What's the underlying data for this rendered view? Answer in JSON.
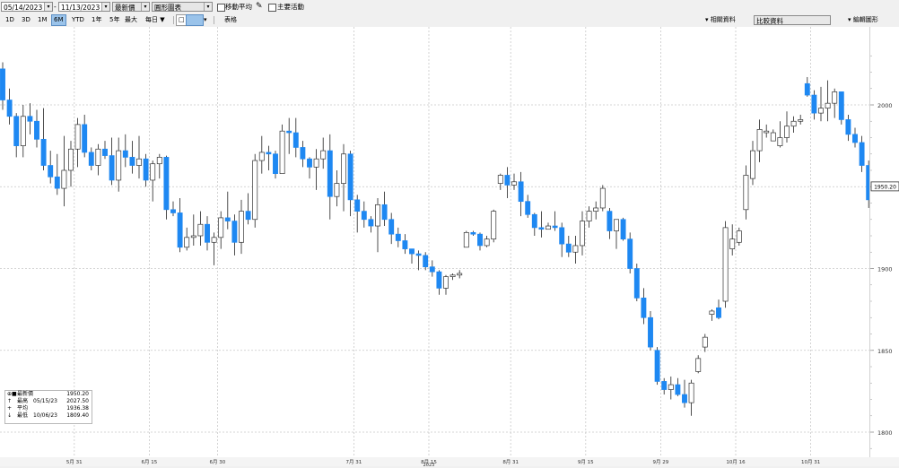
{
  "toolbar": {
    "start_date": "05/14/2023",
    "end_date": "11/13/2023",
    "field_1": "最新價",
    "field_2": "圓形圖表",
    "moving_avg_label": "移動平均",
    "key_events_label": "主要活動"
  },
  "periods": [
    "1D",
    "3D",
    "1M",
    "6M",
    "YTD",
    "1年",
    "5年",
    "最大",
    "每日 ▼"
  ],
  "selected_period": "6M",
  "table_label": "表格",
  "right_controls": {
    "related_data": "相關資料",
    "compare_data": "比較資料",
    "edit_chart": "編輯圖形"
  },
  "legend": {
    "rows": [
      {
        "label": "最新價",
        "date": "",
        "value": "1950.20"
      },
      {
        "label": "最高",
        "date": "05/15/23",
        "value": "2027.50"
      },
      {
        "label": "平均",
        "date": "",
        "value": "1936.38"
      },
      {
        "label": "最低",
        "date": "10/06/23",
        "value": "1809.40"
      }
    ]
  },
  "chart_data": {
    "type": "candlestick",
    "title": "",
    "ylim": [
      1785,
      2035
    ],
    "yticks": [
      1800,
      1850,
      1900,
      1950,
      2000
    ],
    "grid": true,
    "up_color": "#ffffff",
    "down_color": "#1e88f2",
    "last_price_label": "1950.20",
    "last_price": 1950.2,
    "year_label": "2023",
    "x_ticks": [
      "5月 31",
      "6月 15",
      "6月 30",
      "7月 31",
      "8月 15",
      "8月 31",
      "9月 15",
      "9月 29",
      "10月 16",
      "10月 31"
    ],
    "x_tick_index": [
      11,
      22,
      32,
      52,
      63,
      75,
      86,
      97,
      108,
      119
    ],
    "candles": [
      [
        2022.0,
        2026.0,
        1997.0,
        2003.0
      ],
      [
        2003.0,
        2010.0,
        1988.0,
        1993.0
      ],
      [
        1993.0,
        1995.0,
        1968.0,
        1975.0
      ],
      [
        1975.0,
        2000.0,
        1968.0,
        1993.0
      ],
      [
        1993.0,
        2001.0,
        1982.0,
        1990.0
      ],
      [
        1990.0,
        1997.0,
        1974.0,
        1979.0
      ],
      [
        1979.0,
        1998.0,
        1960.0,
        1963.0
      ],
      [
        1963.0,
        1972.0,
        1952.0,
        1956.0
      ],
      [
        1956.0,
        1970.0,
        1945.0,
        1949.0
      ],
      [
        1949.0,
        1981.0,
        1938.0,
        1960.0
      ],
      [
        1960.0,
        1978.0,
        1950.0,
        1973.0
      ],
      [
        1973.0,
        1992.0,
        1962.0,
        1988.0
      ],
      [
        1988.0,
        1994.0,
        1968.0,
        1971.0
      ],
      [
        1971.0,
        1974.0,
        1960.0,
        1963.0
      ],
      [
        1963.0,
        1976.0,
        1957.0,
        1973.0
      ],
      [
        1973.0,
        1978.0,
        1967.0,
        1969.0
      ],
      [
        1969.0,
        1980.0,
        1951.0,
        1954.0
      ],
      [
        1954.0,
        1980.0,
        1947.0,
        1972.0
      ],
      [
        1972.0,
        1982.0,
        1962.0,
        1968.0
      ],
      [
        1968.0,
        1978.0,
        1958.0,
        1963.0
      ],
      [
        1963.0,
        1981.0,
        1955.0,
        1967.0
      ],
      [
        1967.0,
        1970.0,
        1950.0,
        1954.0
      ],
      [
        1954.0,
        1966.0,
        1941.0,
        1964.0
      ],
      [
        1964.0,
        1970.0,
        1955.0,
        1968.0
      ],
      [
        1968.0,
        1969.0,
        1930.0,
        1936.0
      ],
      [
        1936.0,
        1941.0,
        1932.0,
        1934.0
      ],
      [
        1934.0,
        1943.0,
        1910.0,
        1913.0
      ],
      [
        1913.0,
        1925.0,
        1911.0,
        1919.0
      ],
      [
        1919.0,
        1933.0,
        1914.0,
        1920.0
      ],
      [
        1920.0,
        1935.0,
        1914.0,
        1927.0
      ],
      [
        1927.0,
        1932.0,
        1911.0,
        1916.0
      ],
      [
        1916.0,
        1922.0,
        1902.0,
        1919.0
      ],
      [
        1919.0,
        1935.0,
        1912.0,
        1931.0
      ],
      [
        1931.0,
        1947.0,
        1924.0,
        1929.0
      ],
      [
        1929.0,
        1933.0,
        1908.0,
        1916.0
      ],
      [
        1916.0,
        1942.0,
        1909.0,
        1935.0
      ],
      [
        1935.0,
        1946.0,
        1927.0,
        1930.0
      ],
      [
        1930.0,
        1970.0,
        1925.0,
        1966.0
      ],
      [
        1966.0,
        1981.0,
        1958.0,
        1971.0
      ],
      [
        1971.0,
        1975.0,
        1960.0,
        1970.0
      ],
      [
        1970.0,
        1972.0,
        1955.0,
        1958.0
      ],
      [
        1958.0,
        1988.0,
        1958.0,
        1984.0
      ],
      [
        1984.0,
        1992.0,
        1970.0,
        1983.0
      ],
      [
        1983.0,
        1992.0,
        1968.0,
        1974.0
      ],
      [
        1974.0,
        1978.0,
        1962.0,
        1967.0
      ],
      [
        1967.0,
        1968.0,
        1955.0,
        1962.0
      ],
      [
        1962.0,
        1973.0,
        1948.0,
        1967.0
      ],
      [
        1967.0,
        1980.0,
        1961.0,
        1972.0
      ],
      [
        1972.0,
        1982.0,
        1930.0,
        1944.0
      ],
      [
        1944.0,
        1960.0,
        1938.0,
        1952.0
      ],
      [
        1952.0,
        1976.0,
        1935.0,
        1970.0
      ],
      [
        1970.0,
        1972.0,
        1932.0,
        1942.0
      ],
      [
        1942.0,
        1945.0,
        1922.0,
        1935.0
      ],
      [
        1935.0,
        1941.0,
        1925.0,
        1930.0
      ],
      [
        1930.0,
        1932.0,
        1922.0,
        1926.0
      ],
      [
        1926.0,
        1943.0,
        1910.0,
        1939.0
      ],
      [
        1939.0,
        1947.0,
        1926.0,
        1930.0
      ],
      [
        1930.0,
        1934.0,
        1915.0,
        1921.0
      ],
      [
        1921.0,
        1925.0,
        1913.0,
        1917.0
      ],
      [
        1917.0,
        1921.0,
        1909.0,
        1912.0
      ],
      [
        1912.0,
        1912.0,
        1903.0,
        1909.0
      ],
      [
        1909.0,
        1911.0,
        1899.0,
        1908.0
      ],
      [
        1908.0,
        1910.0,
        1899.0,
        1901.0
      ],
      [
        1901.0,
        1905.0,
        1895.0,
        1898.0
      ],
      [
        1898.0,
        1899.0,
        1884.0,
        1888.0
      ],
      [
        1888.0,
        1896.0,
        1884.0,
        1895.0
      ],
      [
        1895.0,
        1897.0,
        1893.0,
        1896.0
      ],
      [
        1896.0,
        1899.0,
        1894.0,
        1897.0
      ],
      [
        1913.0,
        1923.0,
        1913.0,
        1922.0
      ],
      [
        1922.0,
        1923.0,
        1920.0,
        1921.0
      ],
      [
        1921.0,
        1922.0,
        1911.0,
        1914.0
      ],
      [
        1914.0,
        1920.0,
        1913.0,
        1918.0
      ],
      [
        1918.0,
        1936.0,
        1916.0,
        1935.0
      ],
      [
        1952.0,
        1958.0,
        1948.0,
        1957.0
      ],
      [
        1957.0,
        1962.0,
        1943.0,
        1951.0
      ],
      [
        1951.0,
        1958.0,
        1948.0,
        1953.0
      ],
      [
        1953.0,
        1959.0,
        1932.0,
        1941.0
      ],
      [
        1941.0,
        1945.0,
        1931.0,
        1933.0
      ],
      [
        1933.0,
        1934.0,
        1920.0,
        1925.0
      ],
      [
        1925.0,
        1935.0,
        1919.0,
        1924.0
      ],
      [
        1924.0,
        1928.0,
        1924.0,
        1926.0
      ],
      [
        1926.0,
        1935.0,
        1923.0,
        1925.0
      ],
      [
        1925.0,
        1928.0,
        1907.0,
        1915.0
      ],
      [
        1915.0,
        1920.0,
        1907.0,
        1910.0
      ],
      [
        1910.0,
        1920.0,
        1903.0,
        1914.0
      ],
      [
        1914.0,
        1935.0,
        1908.0,
        1929.0
      ],
      [
        1929.0,
        1938.0,
        1925.0,
        1935.0
      ],
      [
        1935.0,
        1941.0,
        1930.0,
        1937.0
      ],
      [
        1937.0,
        1951.0,
        1935.0,
        1949.0
      ],
      [
        1935.0,
        1937.0,
        1918.0,
        1923.0
      ],
      [
        1923.0,
        1928.0,
        1912.0,
        1930.0
      ],
      [
        1930.0,
        1931.0,
        1917.0,
        1918.0
      ],
      [
        1918.0,
        1922.0,
        1897.0,
        1900.0
      ],
      [
        1900.0,
        1903.0,
        1880.0,
        1882.0
      ],
      [
        1882.0,
        1888.0,
        1866.0,
        1870.0
      ],
      [
        1870.0,
        1874.0,
        1850.0,
        1852.0
      ],
      [
        1850.0,
        1852.0,
        1829.0,
        1831.0
      ],
      [
        1831.0,
        1833.0,
        1823.0,
        1826.0
      ],
      [
        1826.0,
        1834.0,
        1820.0,
        1829.0
      ],
      [
        1829.0,
        1833.0,
        1822.0,
        1823.0
      ],
      [
        1823.0,
        1832.0,
        1815.0,
        1818.0
      ],
      [
        1818.0,
        1832.0,
        1810.0,
        1830.0
      ],
      [
        1837.0,
        1847.0,
        1836.0,
        1845.0
      ],
      [
        1852.0,
        1860.0,
        1849.0,
        1858.0
      ],
      [
        1872.0,
        1875.0,
        1868.0,
        1874.0
      ],
      [
        1876.0,
        1881.0,
        1869.0,
        1870.0
      ],
      [
        1880.0,
        1929.0,
        1876.0,
        1925.0
      ],
      [
        1912.0,
        1927.0,
        1908.0,
        1918.0
      ],
      [
        1916.0,
        1925.0,
        1914.0,
        1923.0
      ],
      [
        1936.0,
        1963.0,
        1930.0,
        1957.0
      ],
      [
        1955.0,
        1978.0,
        1951.0,
        1972.0
      ],
      [
        1972.0,
        1991.0,
        1965.0,
        1985.0
      ],
      [
        1983.0,
        1988.0,
        1980.0,
        1984.0
      ],
      [
        1978.0,
        1985.0,
        1978.0,
        1983.0
      ],
      [
        1975.0,
        1990.0,
        1974.0,
        1980.0
      ],
      [
        1980.0,
        1996.0,
        1977.0,
        1987.0
      ],
      [
        1987.0,
        1993.0,
        1983.0,
        1990.0
      ],
      [
        1990.0,
        1994.0,
        1988.0,
        1991.0
      ],
      [
        2013.0,
        2017.0,
        2005.0,
        2006.0
      ],
      [
        2006.0,
        2009.0,
        1991.0,
        1995.0
      ],
      [
        1995.0,
        2011.0,
        1990.0,
        1998.0
      ],
      [
        1998.0,
        2015.0,
        1990.0,
        2001.0
      ],
      [
        2001.0,
        2010.0,
        1992.0,
        2008.0
      ],
      [
        2008.0,
        2008.0,
        1988.0,
        1991.0
      ],
      [
        1991.0,
        1994.0,
        1978.0,
        1982.0
      ],
      [
        1982.0,
        1986.0,
        1974.0,
        1977.0
      ],
      [
        1977.0,
        1981.0,
        1959.0,
        1963.0
      ],
      [
        1963.0,
        1966.0,
        1937.0,
        1942.0
      ],
      [
        1942.0,
        1953.0,
        1936.0,
        1950.2
      ]
    ]
  }
}
